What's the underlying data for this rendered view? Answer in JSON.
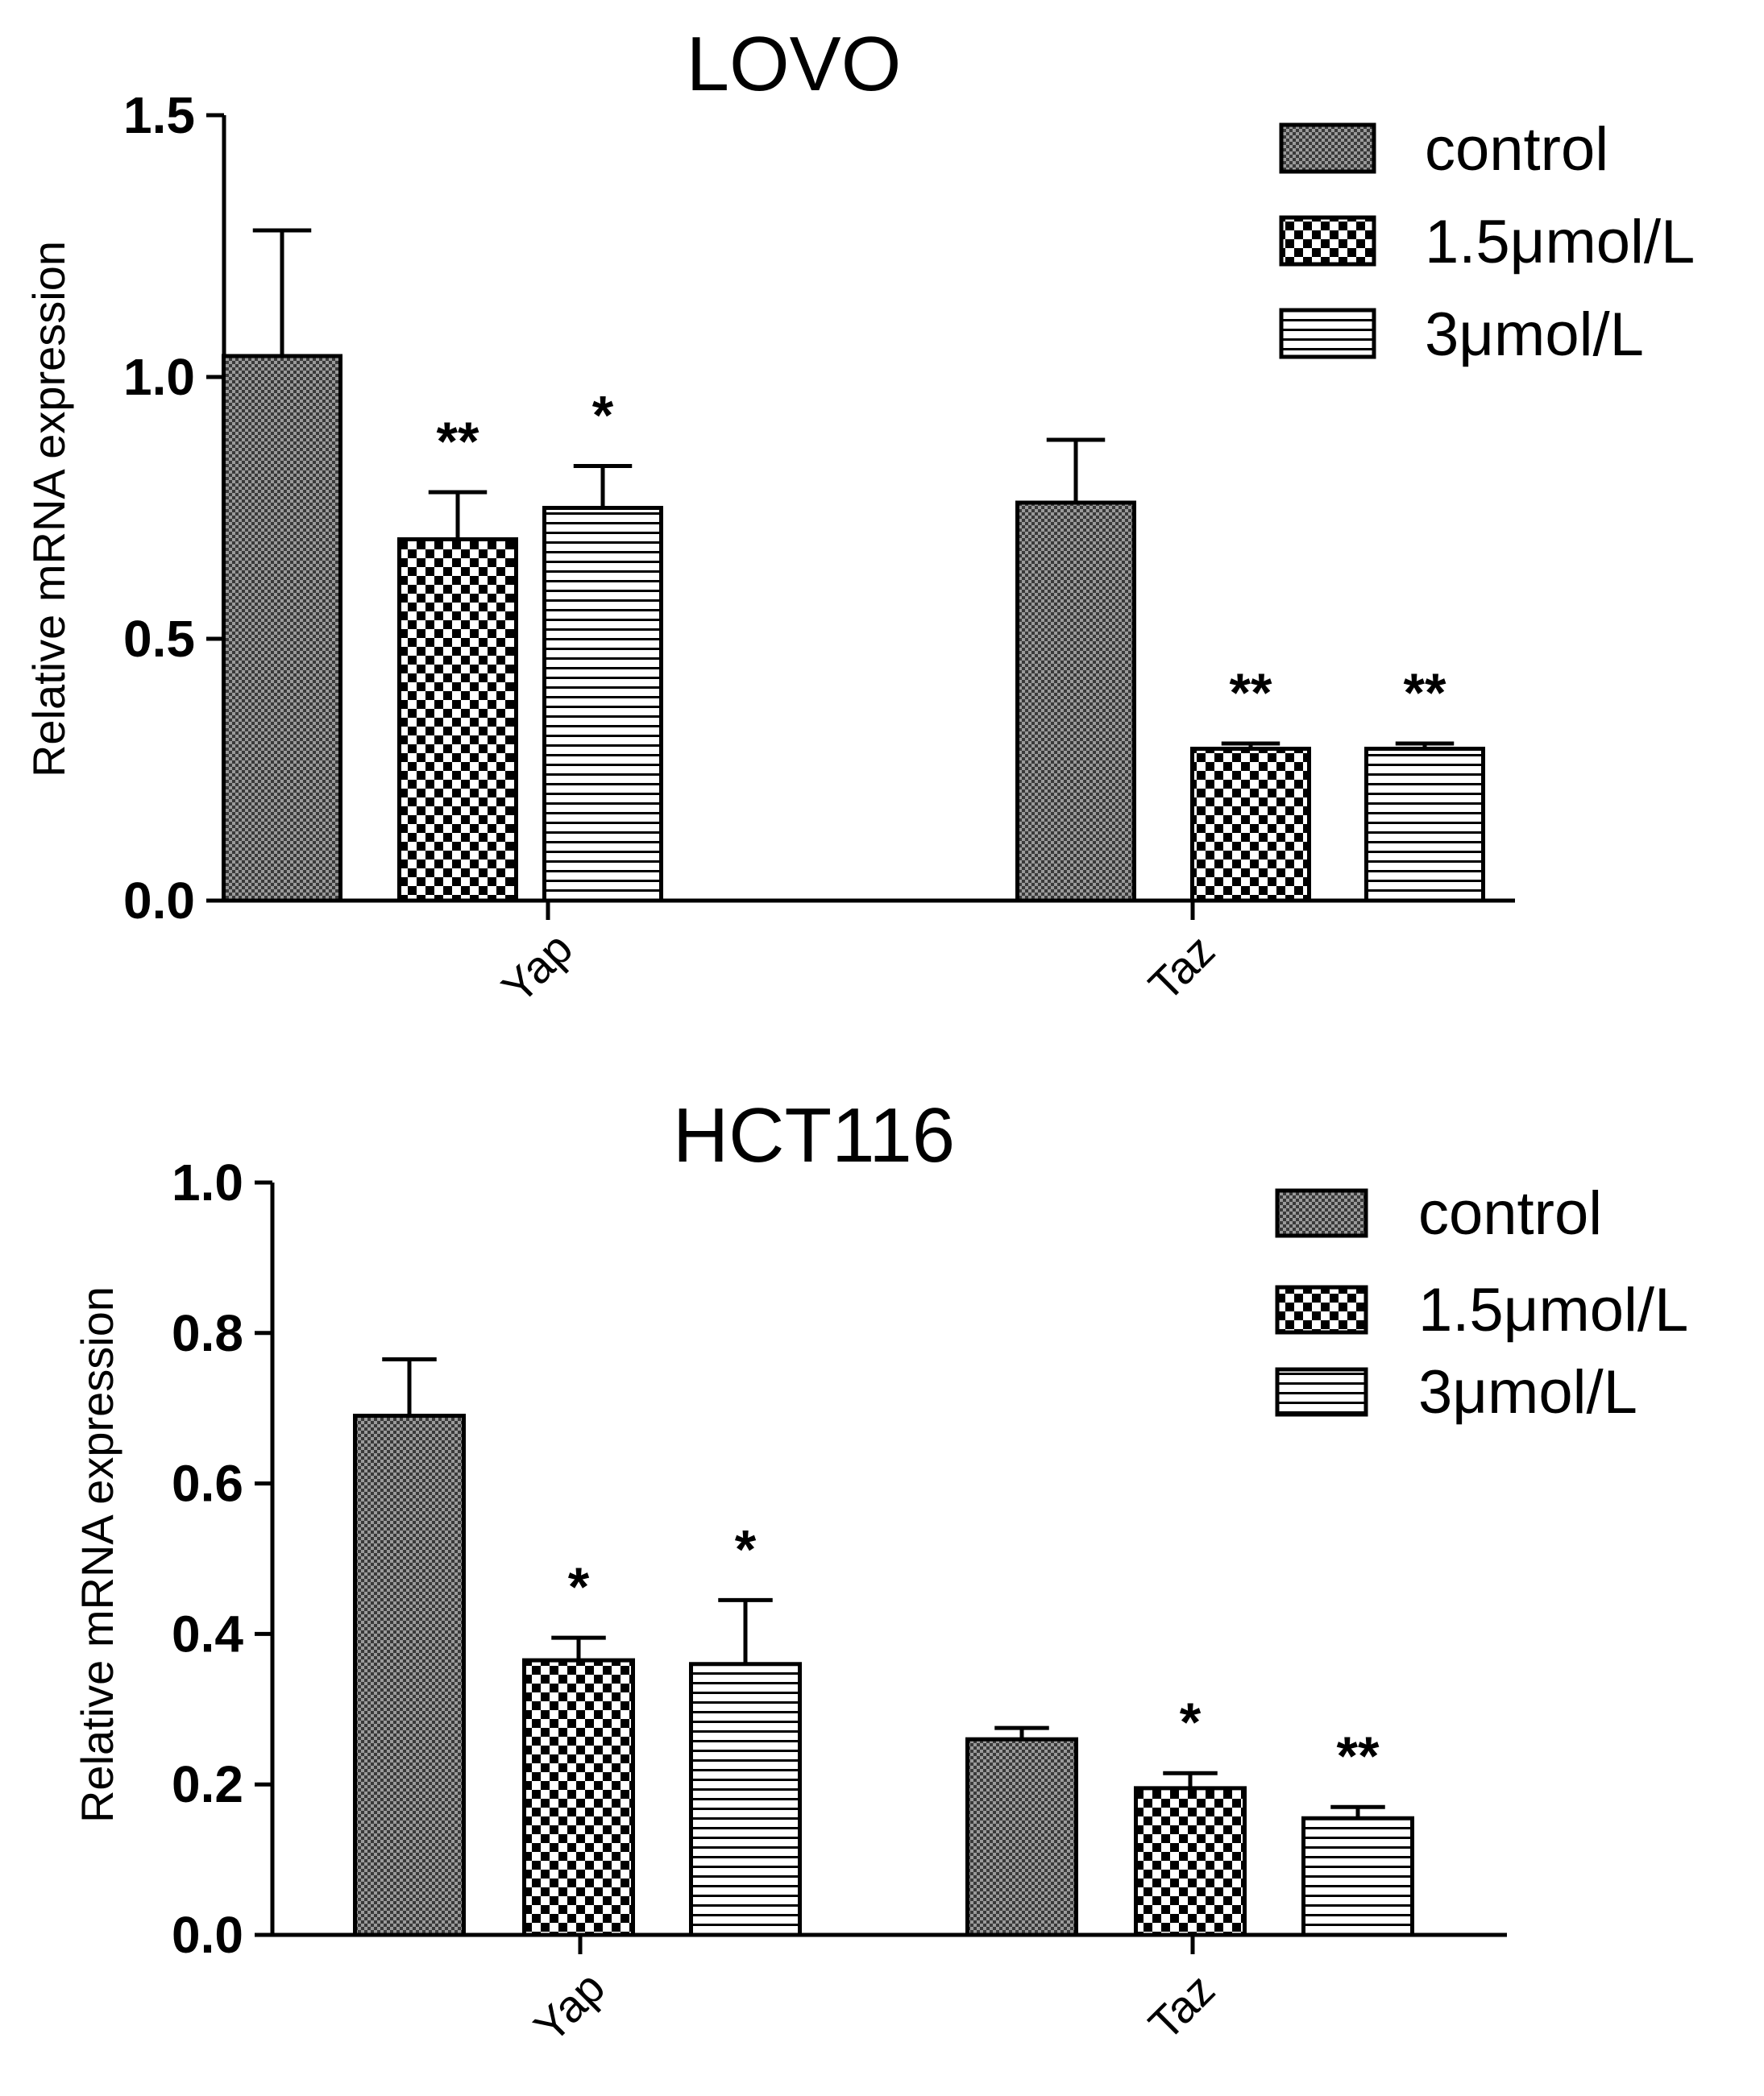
{
  "chart_data": [
    {
      "type": "bar",
      "title": "LOVO",
      "xlabel": "",
      "ylabel": "Relative mRNA expression",
      "ylim": [
        0,
        1.5
      ],
      "yticks": [
        0.0,
        0.5,
        1.0,
        1.5
      ],
      "ytick_labels": [
        "0.0",
        "0.5",
        "1.0",
        "1.5"
      ],
      "categories": [
        "Yap",
        "Taz"
      ],
      "legend_position": "top-right",
      "series": [
        {
          "name": "control",
          "pattern": "fine-dots",
          "values": [
            1.04,
            0.76
          ],
          "errors": [
            0.24,
            0.12
          ],
          "significance": [
            "",
            ""
          ]
        },
        {
          "name": "1.5μmol/L",
          "pattern": "checker",
          "values": [
            0.69,
            0.29
          ],
          "errors": [
            0.09,
            0.01
          ],
          "significance": [
            "**",
            "**"
          ]
        },
        {
          "name": "3μmol/L",
          "pattern": "hstripes",
          "values": [
            0.75,
            0.29
          ],
          "errors": [
            0.08,
            0.01
          ],
          "significance": [
            "*",
            "**"
          ]
        }
      ]
    },
    {
      "type": "bar",
      "title": "HCT116",
      "xlabel": "",
      "ylabel": "Relative mRNA expression",
      "ylim": [
        0,
        1.0
      ],
      "yticks": [
        0.0,
        0.2,
        0.4,
        0.6,
        0.8,
        1.0
      ],
      "ytick_labels": [
        "0.0",
        "0.2",
        "0.4",
        "0.6",
        "0.8",
        "1.0"
      ],
      "categories": [
        "Yap",
        "Taz"
      ],
      "legend_position": "top-right",
      "series": [
        {
          "name": "control",
          "pattern": "fine-dots",
          "values": [
            0.69,
            0.26
          ],
          "errors": [
            0.075,
            0.015
          ],
          "significance": [
            "",
            ""
          ]
        },
        {
          "name": "1.5μmol/L",
          "pattern": "checker",
          "values": [
            0.365,
            0.195
          ],
          "errors": [
            0.03,
            0.02
          ],
          "significance": [
            "*",
            "*"
          ]
        },
        {
          "name": "3μmol/L",
          "pattern": "hstripes",
          "values": [
            0.36,
            0.155
          ],
          "errors": [
            0.085,
            0.015
          ],
          "significance": [
            "*",
            "**"
          ]
        }
      ]
    }
  ]
}
